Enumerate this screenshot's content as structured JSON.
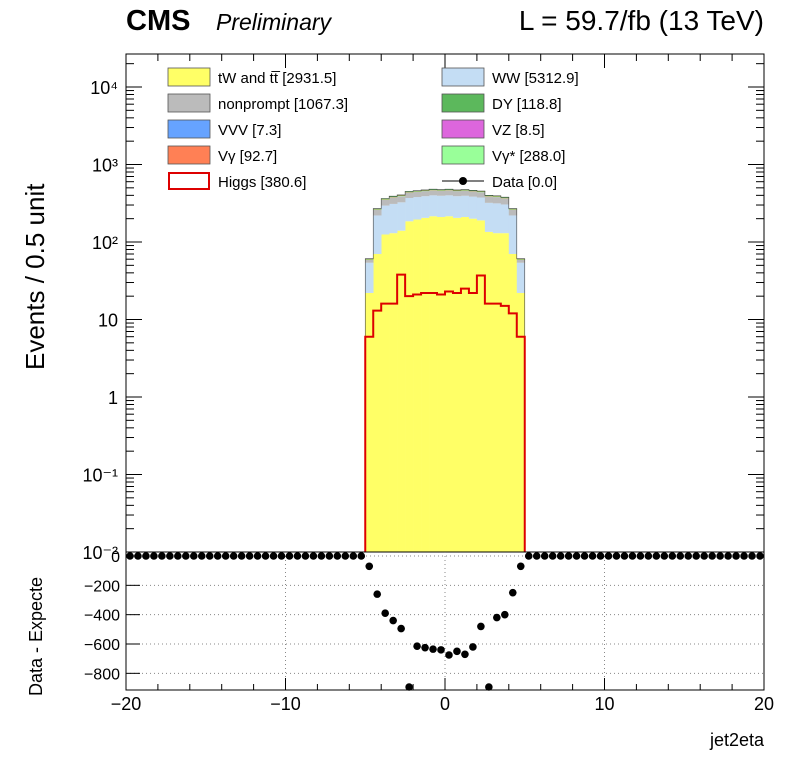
{
  "header": {
    "experiment": "CMS",
    "status": "Preliminary",
    "luminosity": "L = 59.7/fb (13 TeV)"
  },
  "legend": [
    {
      "label": "tW and tt̅ [2931.5]",
      "color": "#ffff66",
      "style": "fill"
    },
    {
      "label": "WW [5312.9]",
      "color": "#c4ddf4",
      "style": "fill"
    },
    {
      "label": "nonprompt [1067.3]",
      "color": "#bbbbbb",
      "style": "fill"
    },
    {
      "label": "DY [118.8]",
      "color": "#5cb85c",
      "style": "fill"
    },
    {
      "label": "VVV [7.3]",
      "color": "#66a3ff",
      "style": "fill"
    },
    {
      "label": "VZ [8.5]",
      "color": "#dd66dd",
      "style": "fill"
    },
    {
      "label": "Vγ [92.7]",
      "color": "#ff8055",
      "style": "fill"
    },
    {
      "label": "Vγ* [288.0]",
      "color": "#99ff99",
      "style": "fill"
    },
    {
      "label": "Higgs [380.6]",
      "color": "#dd0000",
      "style": "line"
    },
    {
      "label": "Data [0.0]",
      "color": "#000000",
      "style": "marker"
    }
  ],
  "chart_data": [
    {
      "type": "bar",
      "xlabel": "",
      "ylabel": "Events / 0.5 unit",
      "yscale": "log",
      "xlim": [
        -20,
        20
      ],
      "ylim": [
        0.01,
        25000
      ],
      "ytick_labels": [
        "10⁻²",
        "10⁻¹",
        "1",
        "10",
        "10²",
        "10³",
        "10⁴"
      ],
      "bin_width": 0.5,
      "bin_low_edges": [
        -5.0,
        -4.5,
        -4.0,
        -3.5,
        -3.0,
        -2.5,
        -2.0,
        -1.5,
        -1.0,
        -0.5,
        0.0,
        0.5,
        1.0,
        1.5,
        2.0,
        2.5,
        3.0,
        3.5,
        4.0,
        4.5
      ],
      "series": [
        {
          "name": "tW and tt̅",
          "values": [
            22,
            70,
            125,
            130,
            140,
            185,
            195,
            205,
            215,
            210,
            215,
            205,
            210,
            200,
            190,
            135,
            130,
            130,
            70,
            22
          ]
        },
        {
          "name": "WW",
          "values": [
            32,
            150,
            170,
            180,
            185,
            185,
            185,
            185,
            185,
            185,
            185,
            185,
            185,
            185,
            185,
            185,
            185,
            175,
            150,
            32
          ]
        },
        {
          "name": "nonprompt",
          "values": [
            5,
            40,
            55,
            65,
            65,
            65,
            65,
            65,
            65,
            65,
            65,
            65,
            65,
            65,
            65,
            65,
            65,
            60,
            40,
            5
          ]
        },
        {
          "name": "Vγ*",
          "values": [
            1,
            6,
            8,
            9,
            9,
            9,
            9,
            9,
            9,
            9,
            9,
            9,
            9,
            9,
            9,
            9,
            9,
            8,
            6,
            1
          ]
        },
        {
          "name": "Vγ",
          "values": [
            0.5,
            2,
            3,
            3,
            3,
            3,
            3,
            3,
            3,
            3,
            3,
            3,
            3,
            3,
            3,
            3,
            3,
            3,
            2,
            0.5
          ]
        },
        {
          "name": "DY",
          "values": [
            0.5,
            2,
            3,
            3,
            3,
            3,
            3,
            3,
            3,
            3,
            3,
            3,
            3,
            3,
            3,
            3,
            3,
            3,
            2,
            0.5
          ]
        }
      ],
      "higgs": {
        "name": "Higgs",
        "values": [
          6,
          13,
          16,
          16,
          38,
          20,
          21,
          22,
          22,
          21,
          23,
          22,
          25,
          22,
          37,
          16,
          16,
          15,
          12,
          6
        ]
      },
      "data": {
        "name": "Data",
        "values_x_all_bins_outside_range": 0
      }
    },
    {
      "type": "scatter",
      "xlabel": "jet2eta",
      "ylabel": "Data - Expecte",
      "xlim": [
        -20,
        20
      ],
      "ylim": [
        -900,
        0
      ],
      "xticks": [
        -20,
        -10,
        0,
        10,
        20
      ],
      "xtick_labels": [
        "−20",
        "−10",
        "0",
        "10",
        "20"
      ],
      "yticks": [
        0,
        -200,
        -400,
        -600,
        -800
      ],
      "ytick_labels": [
        "0",
        "−200",
        "−400",
        "−600",
        "−800"
      ],
      "x": [
        -4.75,
        -4.25,
        -3.75,
        -3.25,
        -2.75,
        -2.25,
        -1.75,
        -1.25,
        -0.75,
        -0.25,
        0.25,
        0.75,
        1.25,
        1.75,
        2.25,
        2.75,
        3.25,
        3.75,
        4.25,
        4.75
      ],
      "y": [
        -70,
        -260,
        -390,
        -440,
        -495,
        -900,
        -615,
        -625,
        -635,
        -640,
        -675,
        -650,
        -670,
        -620,
        -480,
        -900,
        -420,
        -400,
        -250,
        -70
      ],
      "zero_band_x_step": 0.5
    }
  ]
}
